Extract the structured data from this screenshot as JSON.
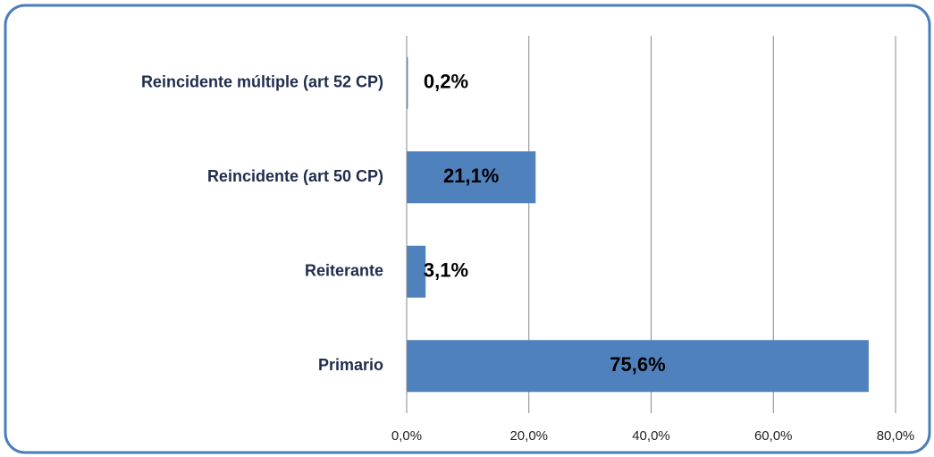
{
  "chart_data": {
    "type": "bar",
    "orientation": "horizontal",
    "categories": [
      "Reincidente múltiple (art 52 CP)",
      "Reincidente (art 50 CP)",
      "Reiterante",
      "Primario"
    ],
    "values": [
      0.2,
      21.1,
      3.1,
      75.6
    ],
    "value_labels": [
      "0,2%",
      "21,1%",
      "3,1%",
      "75,6%"
    ],
    "color": "#4f81bd",
    "xlim": [
      0,
      80
    ],
    "xticks": [
      {
        "value": 0,
        "label": "0,0%"
      },
      {
        "value": 20,
        "label": "20,0%"
      },
      {
        "value": 40,
        "label": "40,0%"
      },
      {
        "value": 60,
        "label": "60,0%"
      },
      {
        "value": 80,
        "label": "80,0%"
      }
    ],
    "grid": true
  }
}
